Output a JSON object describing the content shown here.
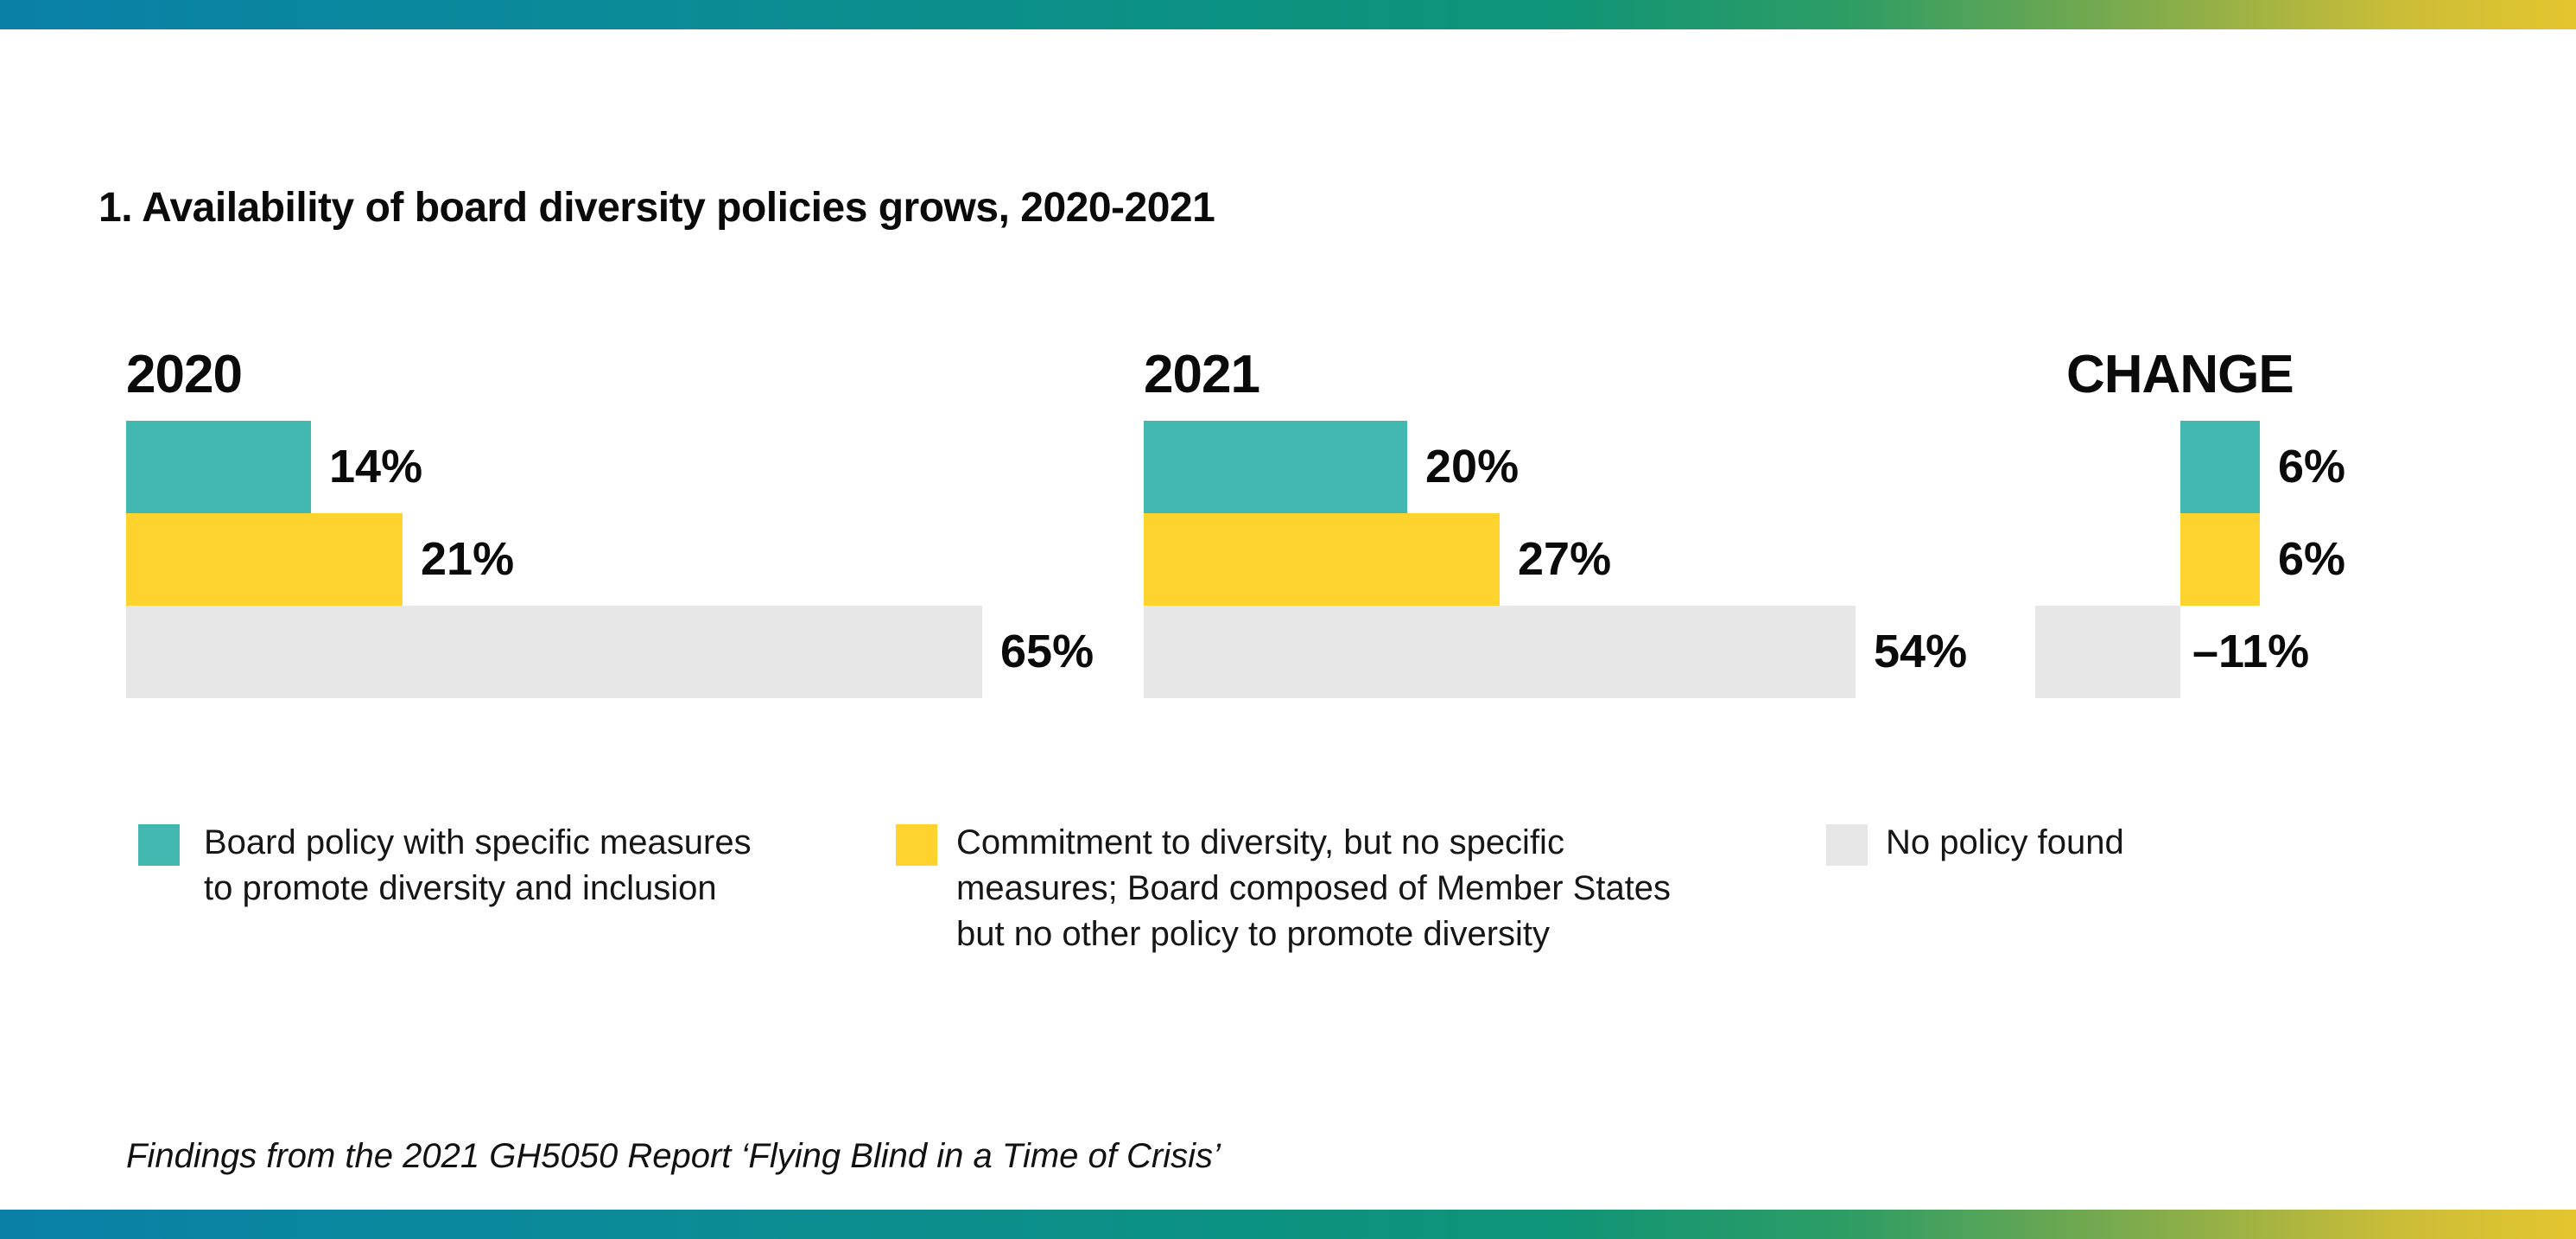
{
  "title": "1. Availability of board diversity policies grows, 2020-2021",
  "footer": "Findings from the 2021 GH5050 Report ‘Flying Blind in a Time of Crisis’",
  "colors": {
    "teal": "#43B8B0",
    "yellow": "#FFD32E",
    "gray": "#E7E7E7",
    "gradient_left_blue": "#0A80A7",
    "gradient_mid_green": "#0E9478",
    "gradient_right_yellow": "#E4C52E",
    "text": "#0A0A0A"
  },
  "chart_data": {
    "type": "bar",
    "orientation": "horizontal",
    "unit": "%",
    "title": "1. Availability of board diversity policies grows, 2020-2021",
    "series_names": [
      "board-policy-with-measures",
      "commitment-no-measures",
      "no-policy-found"
    ],
    "series_colors": [
      "teal",
      "yellow",
      "gray"
    ],
    "groups": [
      {
        "label": "2020",
        "values": [
          14,
          21,
          65
        ],
        "display": [
          "14%",
          "21%",
          "65%"
        ]
      },
      {
        "label": "2021",
        "values": [
          20,
          27,
          54
        ],
        "display": [
          "20%",
          "27%",
          "54%"
        ]
      },
      {
        "label": "CHANGE",
        "values": [
          6,
          6,
          -11
        ],
        "display": [
          "6%",
          "6%",
          "–11%"
        ]
      }
    ],
    "layout_hints": {
      "gridlines": false,
      "axes_shown": false,
      "value_labels_position": "right of bar end; negative values labeled right of zero axis",
      "negative_bars_extend_left": true
    }
  },
  "legend": {
    "items": [
      {
        "swatch": "teal",
        "label": "Board policy with specific measures\nto promote diversity and inclusion"
      },
      {
        "swatch": "yellow",
        "label": "Commitment to diversity, but no specific\nmeasures; Board composed of Member States\nbut no other policy to promote diversity"
      },
      {
        "swatch": "gray",
        "label": "No policy found"
      }
    ]
  }
}
